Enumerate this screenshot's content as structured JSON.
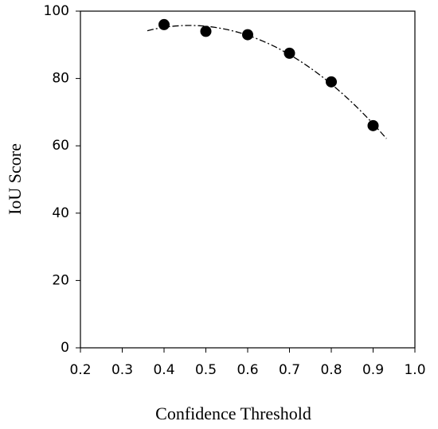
{
  "chart_data": {
    "type": "scatter",
    "xlabel": "Confidence Threshold",
    "ylabel": "IoU Score",
    "x": [
      0.4,
      0.5,
      0.6,
      0.7,
      0.8,
      0.9
    ],
    "values": [
      96,
      94,
      93,
      87.5,
      79,
      66
    ],
    "color": "#000000",
    "trendline": {
      "degree": 2,
      "style": "dash-dot"
    },
    "xlim": [
      0.2,
      1
    ],
    "ylim": [
      0,
      100
    ],
    "xticks": [
      0.2,
      0.3,
      0.4,
      0.5,
      0.6,
      0.7,
      0.8,
      0.9,
      {
        "value": 1,
        "label": "1.0"
      }
    ],
    "yticks": [
      0,
      20,
      40,
      60,
      80,
      100
    ]
  }
}
